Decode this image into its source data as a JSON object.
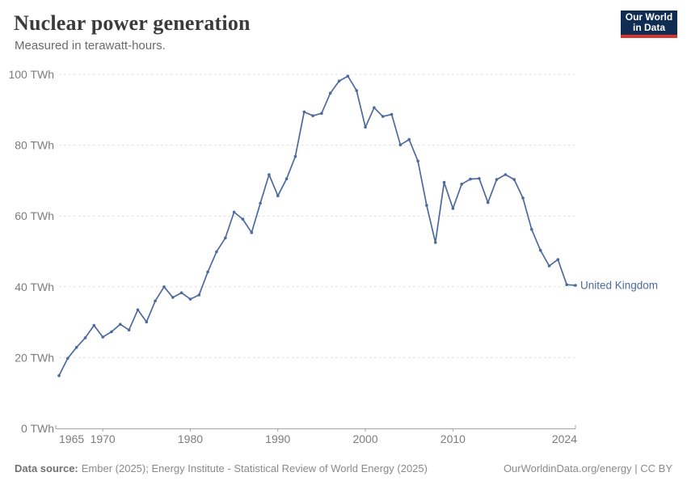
{
  "header": {
    "title": "Nuclear power generation",
    "subtitle": "Measured in terawatt-hours."
  },
  "logo": {
    "line1": "Our World",
    "line2": "in Data"
  },
  "chart_data": {
    "type": "line",
    "title": "Nuclear power generation",
    "unit": "terawatt-hours",
    "ylim": [
      0,
      100
    ],
    "yticks": [
      0,
      20,
      40,
      60,
      80,
      100
    ],
    "ytick_format": "{v} TWh",
    "xticks": [
      1965,
      1970,
      1980,
      1990,
      2000,
      2010,
      2024
    ],
    "grid": "horizontal-dashed",
    "legend_position": "end-of-line-label",
    "x": [
      1965,
      1966,
      1967,
      1968,
      1969,
      1970,
      1971,
      1972,
      1973,
      1974,
      1975,
      1976,
      1977,
      1978,
      1979,
      1980,
      1981,
      1982,
      1983,
      1984,
      1985,
      1986,
      1987,
      1988,
      1989,
      1990,
      1991,
      1992,
      1993,
      1994,
      1995,
      1996,
      1997,
      1998,
      1999,
      2000,
      2001,
      2002,
      2003,
      2004,
      2005,
      2006,
      2007,
      2008,
      2009,
      2010,
      2011,
      2012,
      2013,
      2014,
      2015,
      2016,
      2017,
      2018,
      2019,
      2020,
      2021,
      2022,
      2023,
      2024
    ],
    "series": [
      {
        "name": "United Kingdom",
        "color": "#4c6a9c",
        "values": [
          14.9,
          19.8,
          22.9,
          25.6,
          29.1,
          25.8,
          27.3,
          29.4,
          27.8,
          33.5,
          30.1,
          36.0,
          40.0,
          37.0,
          38.3,
          36.5,
          37.7,
          44.2,
          49.9,
          53.8,
          61.1,
          59.1,
          55.3,
          63.6,
          71.7,
          65.7,
          70.5,
          76.8,
          89.4,
          88.3,
          89.0,
          94.7,
          98.1,
          99.5,
          95.4,
          85.1,
          90.6,
          88.1,
          88.7,
          80.1,
          81.6,
          75.5,
          63.0,
          52.5,
          69.5,
          62.1,
          69.0,
          70.4,
          70.6,
          63.8,
          70.3,
          71.7,
          70.3,
          65.1,
          56.2,
          50.3,
          45.9,
          47.7,
          40.6,
          40.4
        ]
      }
    ]
  },
  "footer": {
    "source_label": "Data source:",
    "source_text": "Ember (2025); Energy Institute - Statistical Review of World Energy (2025)",
    "right_text": "OurWorldinData.org/energy | CC BY"
  },
  "colors": {
    "line": "#4c6a9c",
    "grid": "#dcdcdc",
    "axis": "#a3a3a3",
    "tick_text": "#7c7c7c",
    "logo_bg": "#0f2c52",
    "logo_accent": "#d8352c"
  }
}
